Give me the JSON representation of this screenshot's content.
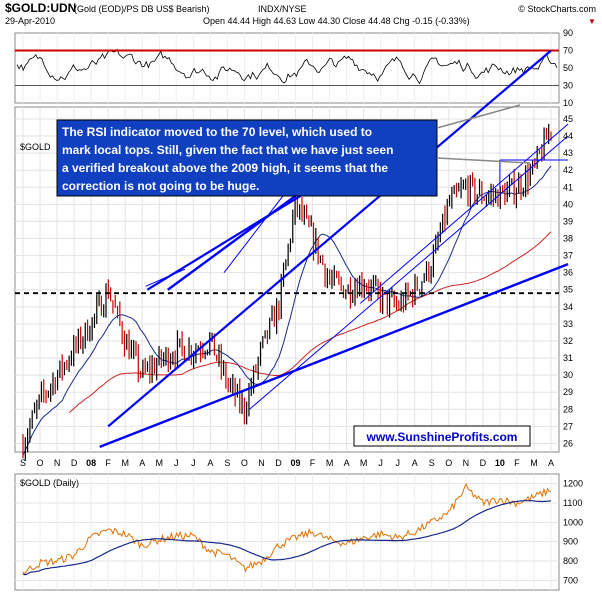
{
  "header": {
    "symbol": "$GOLD:UDN",
    "desc": "(Gold (EOD)/PS DB US$ Bearish)",
    "exchange": "INDX/NYSE",
    "source": "© StockCharts.com",
    "date": "29-Apr-2010",
    "ohlc": "Open 44.44  High 44.63  Low 44.30  Close 44.48  Chg -0.15 (-0.33%)"
  },
  "panels": {
    "main_label": "$GOLD",
    "lower_label": "$GOLD (Daily)"
  },
  "annotation": {
    "text_lines": [
      "The RSI indicator moved to the 70 level, which used to",
      "mark local tops. Still, given the fact that we have just seen",
      "a verified breakout above the 2009 high, it seems that the",
      "correction is not going to be huge."
    ]
  },
  "watermark": "www.SunshineProfits.com",
  "colors": {
    "price_up": "#000000",
    "price_down": "#cc0000",
    "ma_short": "#1a2a8a",
    "ma_long": "#cc2222",
    "trend": "#0000ff",
    "rsi_line": "#cc0000",
    "rsi_fill_high": "#3a8a3a",
    "gold_line": "#e07000",
    "annotation_text": "#ffffff",
    "annotation_bg": "#1040c0",
    "watermark": "#0000cc"
  },
  "chart_data": [
    {
      "type": "line",
      "name": "RSI",
      "yticks": [
        10,
        30,
        50,
        70,
        90
      ],
      "levels": [
        30,
        70
      ],
      "ylim": [
        10,
        90
      ]
    },
    {
      "type": "line",
      "name": "GOLD:UDN price",
      "x_month_labels": [
        "S",
        "O",
        "N",
        "D",
        "08",
        "F",
        "M",
        "A",
        "M",
        "J",
        "J",
        "A",
        "S",
        "O",
        "N",
        "D",
        "09",
        "F",
        "M",
        "A",
        "M",
        "J",
        "J",
        "A",
        "S",
        "O",
        "N",
        "D",
        "10",
        "F",
        "M",
        "A"
      ],
      "yticks": [
        26,
        27,
        28,
        29,
        30,
        31,
        32,
        33,
        34,
        35,
        36,
        37,
        38,
        39,
        40,
        41,
        42,
        43,
        44,
        45
      ],
      "ylim": [
        25.5,
        45.7
      ],
      "series_monthly_close": [
        26.0,
        28.5,
        30.0,
        31.5,
        33.0,
        35.0,
        32.0,
        30.0,
        30.8,
        31.5,
        31.5,
        32.0,
        29.5,
        28.0,
        31.5,
        34.0,
        40.0,
        38.0,
        35.5,
        35.0,
        35.5,
        34.5,
        34.0,
        35.0,
        36.5,
        40.0,
        41.0,
        40.5,
        40.5,
        41.0,
        42.0,
        44.5
      ],
      "support_line": 34.8
    },
    {
      "type": "line",
      "name": "$GOLD (Daily)",
      "yticks": [
        700,
        800,
        900,
        1000,
        1100,
        1200
      ],
      "ylim": [
        650,
        1250
      ],
      "series_monthly_close": [
        740,
        790,
        800,
        830,
        920,
        960,
        940,
        880,
        910,
        930,
        930,
        850,
        830,
        760,
        800,
        880,
        920,
        950,
        910,
        890,
        920,
        940,
        920,
        950,
        1000,
        1050,
        1180,
        1100,
        1120,
        1100,
        1130,
        1170
      ]
    }
  ]
}
